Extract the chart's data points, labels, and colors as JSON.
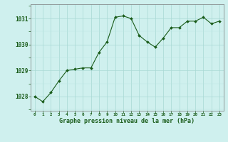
{
  "x": [
    0,
    1,
    2,
    3,
    4,
    5,
    6,
    7,
    8,
    9,
    10,
    11,
    12,
    13,
    14,
    15,
    16,
    17,
    18,
    19,
    20,
    21,
    22,
    23
  ],
  "y": [
    1028.0,
    1027.8,
    1028.15,
    1028.6,
    1029.0,
    1029.05,
    1029.1,
    1029.1,
    1029.7,
    1030.1,
    1031.05,
    1031.1,
    1031.0,
    1030.35,
    1030.1,
    1029.9,
    1030.25,
    1030.65,
    1030.65,
    1030.9,
    1030.9,
    1031.05,
    1030.8,
    1030.9
  ],
  "line_color": "#1a5c1a",
  "marker_color": "#1a5c1a",
  "bg_color": "#cff0ee",
  "grid_color_major": "#a8d8d4",
  "grid_color_minor": "#b8e4e0",
  "xlabel": "Graphe pression niveau de la mer (hPa)",
  "xlabel_color": "#1a5c1a",
  "ylabel_ticks": [
    1028,
    1029,
    1030,
    1031
  ],
  "tick_color": "#1a5c1a",
  "ylim": [
    1027.45,
    1031.55
  ],
  "xlim": [
    -0.5,
    23.5
  ]
}
